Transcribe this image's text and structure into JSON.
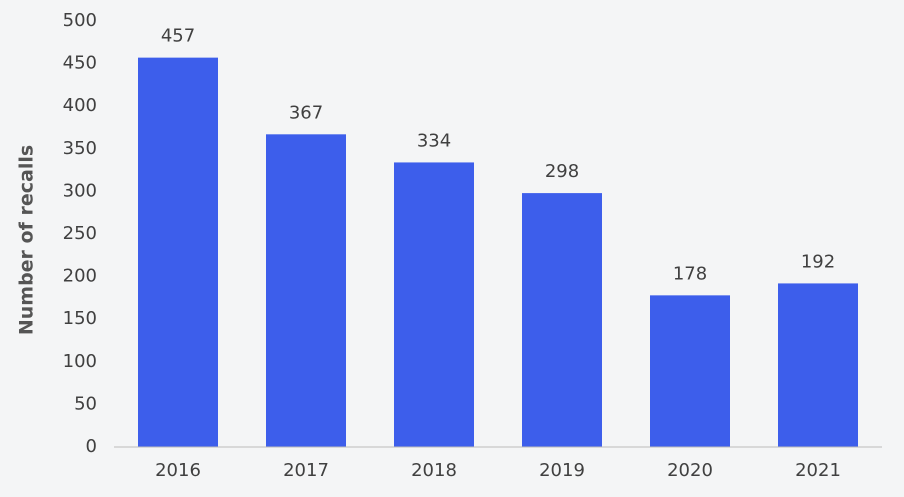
{
  "chart_data": {
    "type": "bar",
    "y_label": "Number of recalls",
    "categories": [
      "2016",
      "2017",
      "2018",
      "2019",
      "2020",
      "2021"
    ],
    "values": [
      457,
      367,
      334,
      298,
      178,
      192
    ],
    "color": "#3d5eeb",
    "ylim": [
      0,
      500
    ],
    "yticks": [
      0,
      50,
      100,
      150,
      200,
      250,
      300,
      350,
      400,
      450,
      500
    ],
    "grid": false
  }
}
